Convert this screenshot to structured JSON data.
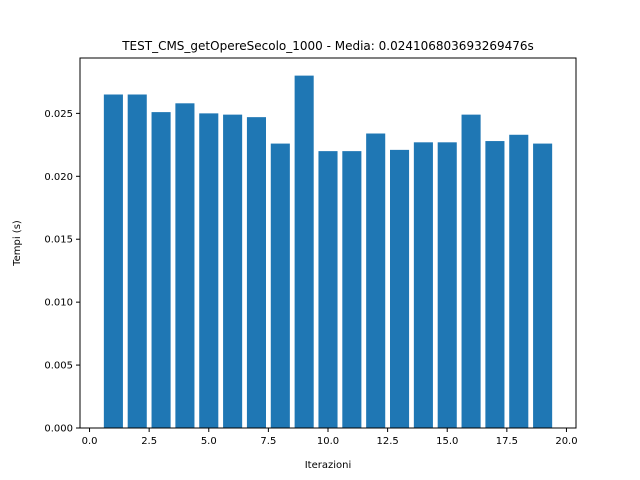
{
  "chart_data": {
    "type": "bar",
    "title": "TEST_CMS_getOpereSecolo_1000 - Media: 0.024106803693269476s",
    "xlabel": "Iterazioni",
    "ylabel": "Tempi (s)",
    "x": [
      1,
      2,
      3,
      4,
      5,
      6,
      7,
      8,
      9,
      10,
      11,
      12,
      13,
      14,
      15,
      16,
      17,
      18,
      19
    ],
    "values": [
      0.0265,
      0.0265,
      0.0251,
      0.0258,
      0.025,
      0.0249,
      0.0247,
      0.0226,
      0.028,
      0.022,
      0.022,
      0.0234,
      0.0221,
      0.0227,
      0.0227,
      0.0249,
      0.0228,
      0.0233,
      0.0226
    ],
    "xlim": [
      -0.4,
      20.4
    ],
    "ylim": [
      0,
      0.0294
    ],
    "xticks": [
      0.0,
      2.5,
      5.0,
      7.5,
      10.0,
      12.5,
      15.0,
      17.5,
      20.0
    ],
    "xtick_labels": [
      "0.0",
      "2.5",
      "5.0",
      "7.5",
      "10.0",
      "12.5",
      "15.0",
      "17.5",
      "20.0"
    ],
    "yticks": [
      0.0,
      0.005,
      0.01,
      0.015,
      0.02,
      0.025
    ],
    "ytick_labels": [
      "0.000",
      "0.005",
      "0.010",
      "0.015",
      "0.020",
      "0.025"
    ],
    "bar_width": 0.8,
    "bar_color": "#1f77b4",
    "grid": false,
    "legend": "none"
  }
}
